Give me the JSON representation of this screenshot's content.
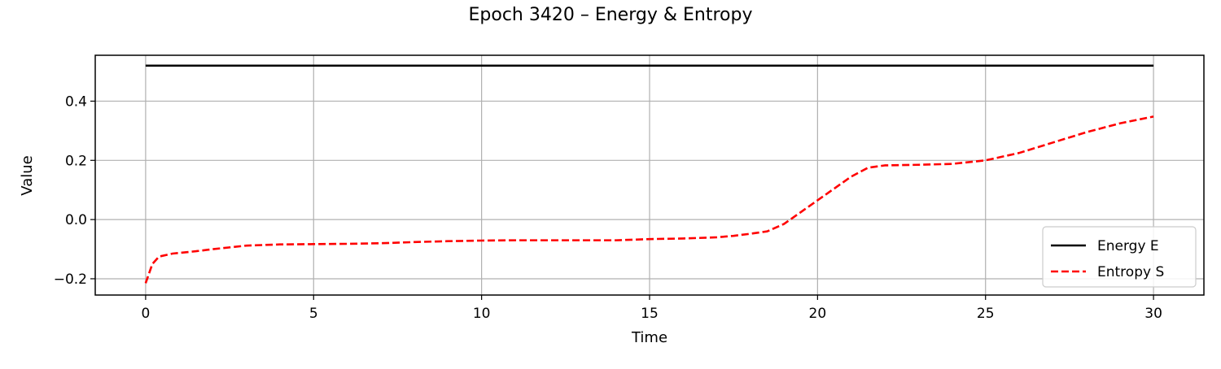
{
  "chart_data": {
    "type": "line",
    "title": "Epoch 3420 – Energy & Entropy",
    "xlabel": "Time",
    "ylabel": "Value",
    "xlim": [
      -1.5,
      31.5
    ],
    "ylim": [
      -0.255,
      0.555
    ],
    "xticks": [
      0,
      5,
      10,
      15,
      20,
      25,
      30
    ],
    "xtick_labels": [
      "0",
      "5",
      "10",
      "15",
      "20",
      "25",
      "30"
    ],
    "yticks": [
      -0.2,
      0.0,
      0.2,
      0.4
    ],
    "ytick_labels": [
      "−0.2",
      "0.0",
      "0.2",
      "0.4"
    ],
    "grid": true,
    "legend_position": "lower right",
    "series": [
      {
        "name": "Energy E",
        "color": "#000000",
        "style": "solid",
        "x": [
          0,
          30
        ],
        "y": [
          0.52,
          0.52
        ]
      },
      {
        "name": "Entropy S",
        "color": "#ff0000",
        "style": "dashed",
        "x": [
          0,
          0.2,
          0.4,
          0.8,
          1.5,
          2,
          3,
          4,
          5,
          6,
          7,
          8,
          9,
          10,
          11,
          12,
          13,
          14,
          15,
          16,
          17,
          17.5,
          18,
          18.5,
          19,
          19.5,
          20,
          20.5,
          21,
          21.5,
          22,
          23,
          24,
          25,
          26,
          27,
          28,
          29,
          30
        ],
        "y": [
          -0.215,
          -0.15,
          -0.125,
          -0.115,
          -0.107,
          -0.1,
          -0.088,
          -0.084,
          -0.083,
          -0.082,
          -0.08,
          -0.076,
          -0.073,
          -0.071,
          -0.07,
          -0.07,
          -0.07,
          -0.07,
          -0.066,
          -0.064,
          -0.06,
          -0.055,
          -0.048,
          -0.04,
          -0.015,
          0.025,
          0.065,
          0.105,
          0.145,
          0.175,
          0.183,
          0.185,
          0.188,
          0.2,
          0.225,
          0.26,
          0.295,
          0.325,
          0.348
        ]
      }
    ]
  }
}
